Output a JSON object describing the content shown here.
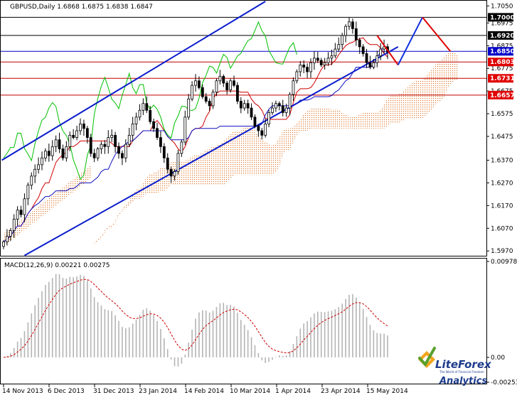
{
  "chart_data": {
    "type": "candlestick",
    "symbol_header": "GBPUSD,Daily  1.6868 1.6875 1.6838 1.6847",
    "x_labels": [
      "14 Nov 2013",
      "6 Dec 2013",
      "31 Dec 2013",
      "23 Jan 2014",
      "14 Feb 2014",
      "10 Mar 2014",
      "1 Apr 2014",
      "23 Apr 2014",
      "15 May 2014"
    ],
    "price_ticks": [
      "1.7050",
      "1.6975",
      "1.6875",
      "1.6775",
      "1.6675",
      "1.6575",
      "1.6475",
      "1.6370",
      "1.6270",
      "1.6170",
      "1.6070",
      "1.5970"
    ],
    "price_range": [
      1.5955,
      1.707
    ],
    "levels": [
      {
        "value": 1.7,
        "label": "1.7000",
        "line": "#000000",
        "tag": "#000000"
      },
      {
        "value": 1.692,
        "label": "1.6920",
        "line": "#000000",
        "tag": "#000000"
      },
      {
        "value": 1.685,
        "label": "1.6850",
        "line": "#0000c8",
        "tag": "#0000c8"
      },
      {
        "value": 1.6803,
        "label": "1.6803",
        "line": "#c00000",
        "tag": "#e00000"
      },
      {
        "value": 1.6731,
        "label": "1.6731",
        "line": "#c00000",
        "tag": "#e00000"
      },
      {
        "value": 1.6657,
        "label": "1.6657",
        "line": "#c00000",
        "tag": "#e00000"
      }
    ],
    "ohlc_close": [
      1.601,
      1.6035,
      1.606,
      1.611,
      1.615,
      1.613,
      1.62,
      1.626,
      1.63,
      1.633,
      1.635,
      1.638,
      1.641,
      1.639,
      1.643,
      1.646,
      1.642,
      1.638,
      1.643,
      1.648,
      1.647,
      1.65,
      1.653,
      1.651,
      1.647,
      1.64,
      1.638,
      1.642,
      1.644,
      1.643,
      1.647,
      1.648,
      1.643,
      1.64,
      1.638,
      1.644,
      1.648,
      1.653,
      1.656,
      1.659,
      1.662,
      1.659,
      1.654,
      1.651,
      1.647,
      1.643,
      1.638,
      1.633,
      1.63,
      1.632,
      1.64,
      1.645,
      1.656,
      1.664,
      1.67,
      1.672,
      1.669,
      1.665,
      1.663,
      1.661,
      1.667,
      1.672,
      1.674,
      1.671,
      1.668,
      1.672,
      1.67,
      1.663,
      1.66,
      1.662,
      1.66,
      1.656,
      1.652,
      1.65,
      1.648,
      1.653,
      1.658,
      1.66,
      1.662,
      1.661,
      1.658,
      1.66,
      1.666,
      1.672,
      1.676,
      1.679,
      1.678,
      1.676,
      1.68,
      1.682,
      1.681,
      1.679,
      1.68,
      1.682,
      1.683,
      1.686,
      1.688,
      1.692,
      1.696,
      1.698,
      1.695,
      1.69,
      1.687,
      1.684,
      1.68,
      1.678,
      1.68,
      1.683,
      1.686,
      1.687,
      1.6847
    ],
    "projection": [
      {
        "style": "red",
        "points": [
          [
            1.692
          ],
          [
            1.679
          ]
        ]
      },
      {
        "style": "blue",
        "points": [
          [
            1.679
          ],
          [
            1.7
          ]
        ]
      },
      {
        "style": "red",
        "points": [
          [
            1.7
          ],
          [
            1.685
          ]
        ]
      }
    ],
    "macd": {
      "label": "MACD(12,26,9) 0.00221 0.00275",
      "ticks": [
        "0.00978",
        "0.00",
        "-0.00253"
      ],
      "range": [
        -0.00253,
        0.00978
      ]
    }
  },
  "branding": {
    "name": "LiteForex",
    "tagline": "The World of Financial Freedom",
    "sub": "Analytics",
    "colors": {
      "orange": "#f08c00",
      "blue": "#1e3c8c",
      "green": "#5aa02c"
    }
  }
}
